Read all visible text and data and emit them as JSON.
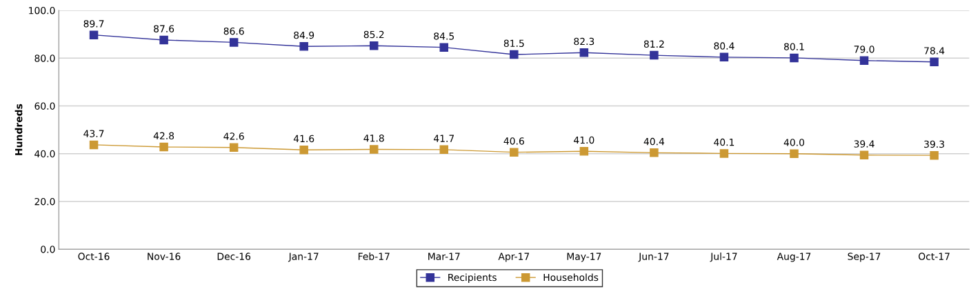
{
  "chart_data": {
    "type": "line",
    "ylabel": "Hundreds",
    "categories": [
      "Oct-16",
      "Nov-16",
      "Dec-16",
      "Jan-17",
      "Feb-17",
      "Mar-17",
      "Apr-17",
      "May-17",
      "Jun-17",
      "Jul-17",
      "Aug-17",
      "Sep-17",
      "Oct-17"
    ],
    "series": [
      {
        "name": "Recipients",
        "color": "#333399",
        "values": [
          89.7,
          87.6,
          86.6,
          84.9,
          85.2,
          84.5,
          81.5,
          82.3,
          81.2,
          80.4,
          80.1,
          79.0,
          78.4
        ],
        "value_labels": [
          "89.7",
          "87.6",
          "86.6",
          "84.9",
          "85.2",
          "84.5",
          "81.5",
          "82.3",
          "81.2",
          "80.4",
          "80.1",
          "79.0",
          "78.4"
        ]
      },
      {
        "name": "Households",
        "color": "#cc9933",
        "values": [
          43.7,
          42.8,
          42.6,
          41.6,
          41.8,
          41.7,
          40.6,
          41.0,
          40.4,
          40.1,
          40.0,
          39.4,
          39.3
        ],
        "value_labels": [
          "43.7",
          "42.8",
          "42.6",
          "41.6",
          "41.8",
          "41.7",
          "40.6",
          "41.0",
          "40.4",
          "40.1",
          "40.0",
          "39.4",
          "39.3"
        ]
      }
    ],
    "ylim": [
      0,
      100
    ],
    "yticks": [
      {
        "value": 0,
        "label": "0.0"
      },
      {
        "value": 20,
        "label": "20.0"
      },
      {
        "value": 40,
        "label": "40.0"
      },
      {
        "value": 60,
        "label": "60.0"
      },
      {
        "value": 80,
        "label": "80.0"
      },
      {
        "value": 100,
        "label": "100.0"
      }
    ],
    "grid": "y",
    "legend": "bottom",
    "marker": "square",
    "line_style": "solid"
  }
}
